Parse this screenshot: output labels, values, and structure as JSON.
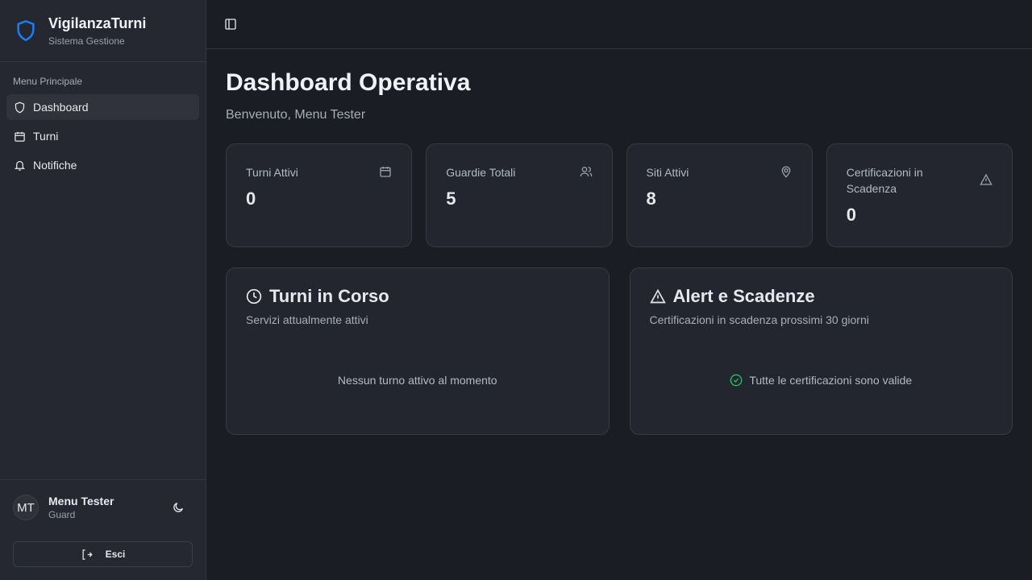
{
  "sidebar": {
    "brand_title": "VigilanzaTurni",
    "brand_subtitle": "Sistema Gestione",
    "section_label": "Menu Principale",
    "items": [
      {
        "label": "Dashboard",
        "icon": "shield-icon",
        "active": true
      },
      {
        "label": "Turni",
        "icon": "calendar-icon"
      },
      {
        "label": "Notifiche",
        "icon": "bell-icon"
      }
    ],
    "user": {
      "initials": "MT",
      "name": "Menu Tester",
      "role": "Guard"
    },
    "logout_label": "Esci"
  },
  "header": {
    "title": "Dashboard Operativa",
    "welcome": "Benvenuto, Menu Tester"
  },
  "stats": [
    {
      "label": "Turni Attivi",
      "value": "0",
      "icon": "calendar-icon"
    },
    {
      "label": "Guardie Totali",
      "value": "5",
      "icon": "users-icon"
    },
    {
      "label": "Siti Attivi",
      "value": "8",
      "icon": "map-pin-icon"
    },
    {
      "label": "Certificazioni in Scadenza",
      "value": "0",
      "icon": "alert-triangle-icon"
    }
  ],
  "panels": [
    {
      "title": "Turni in Corso",
      "subtitle": "Servizi attualmente attivi",
      "empty": "Nessun turno attivo al momento"
    },
    {
      "title": "Alert e Scadenze",
      "subtitle": "Certificazioni in scadenza prossimi 30 giorni",
      "empty": "Tutte le certificazioni sono valide"
    }
  ],
  "colors": {
    "brand": "#1a7cf5",
    "success": "#22c55e"
  }
}
